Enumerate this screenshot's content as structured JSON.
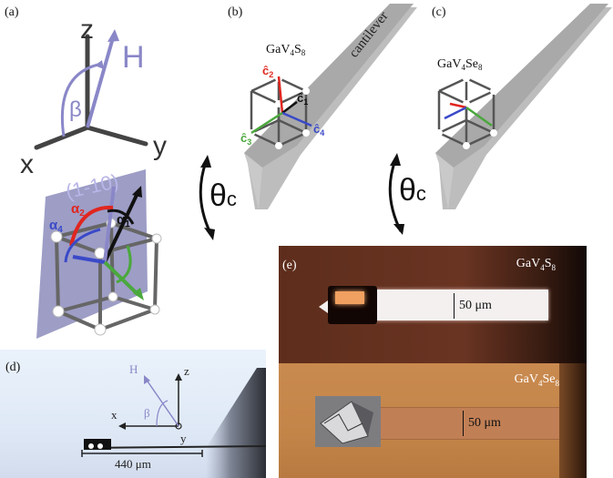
{
  "figure": {
    "panels": {
      "a": {
        "label": "(a)",
        "axis_z": "z",
        "axis_x": "x",
        "axis_y": "y",
        "field": "H",
        "angle": "β",
        "plane": "(1-10)",
        "alpha2": "α",
        "alpha2_sub": "2",
        "alpha4": "α",
        "alpha4_sub": "4",
        "alpha1": "α",
        "alpha1_sub": "1",
        "theta": "θ",
        "theta_sub": "c"
      },
      "b": {
        "label": "(b)",
        "material_main": "GaV",
        "material_sub1": "4",
        "material_mid": "S",
        "material_sub2": "8",
        "cantilever": "cantilever",
        "c1": "ĉ",
        "c1_sub": "1",
        "c2": "ĉ",
        "c2_sub": "2",
        "c3": "ĉ",
        "c3_sub": "3",
        "c4": "ĉ",
        "c4_sub": "4"
      },
      "c": {
        "label": "(c)",
        "material_main": "GaV",
        "material_sub1": "4",
        "material_mid": "Se",
        "material_sub2": "8",
        "theta": "θ",
        "theta_sub": "c"
      },
      "d": {
        "label": "(d)",
        "field": "H",
        "axis_z": "z",
        "axis_x": "x",
        "axis_y": "y",
        "angle": "β",
        "scale": "440 μm"
      },
      "e": {
        "label": "(e)",
        "top_material_main": "GaV",
        "top_material_sub1": "4",
        "top_material_mid": "S",
        "top_material_sub2": "8",
        "top_scale": "50 μm",
        "bottom_material_main": "GaV",
        "bottom_material_sub1": "4",
        "bottom_material_mid": "Se",
        "bottom_material_sub2": "8",
        "bottom_scale": "50 μm"
      }
    },
    "colors": {
      "red": "#e0261f",
      "blue": "#3a49c8",
      "green": "#4aa83c",
      "lavender": "#8a87c8",
      "plane": "#5c5ca0",
      "cantilever": "#a9a9a9"
    }
  }
}
